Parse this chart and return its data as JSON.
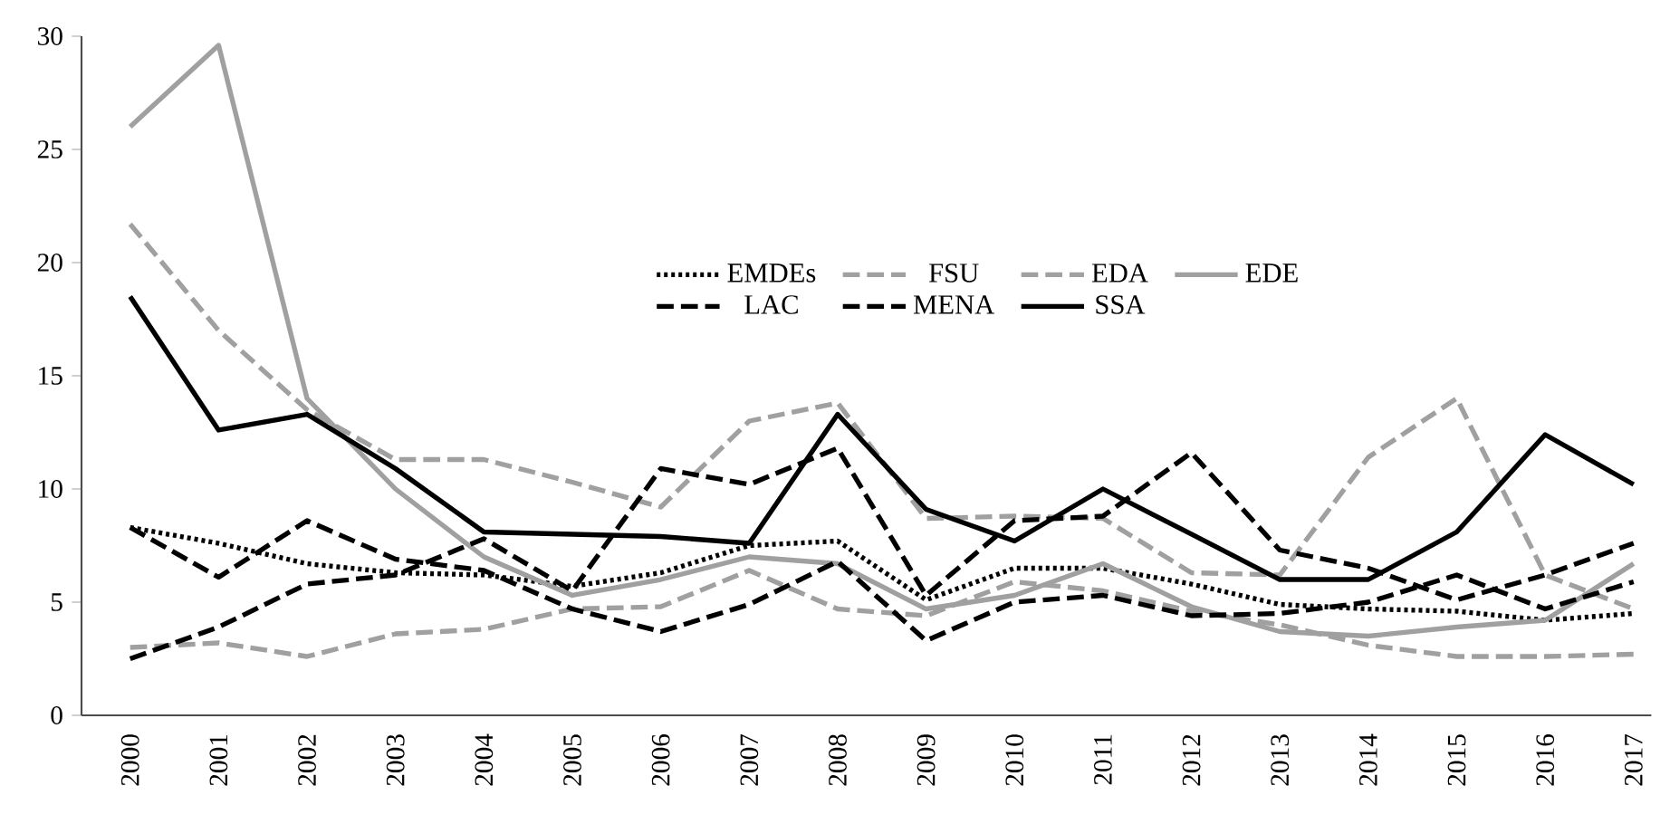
{
  "chart_data": {
    "type": "line",
    "categories": [
      "2000",
      "2001",
      "2002",
      "2003",
      "2004",
      "2005",
      "2006",
      "2007",
      "2008",
      "2009",
      "2010",
      "2011",
      "2012",
      "2013",
      "2014",
      "2015",
      "2016",
      "2017"
    ],
    "ylim": [
      0,
      30
    ],
    "yticks": [
      0,
      5,
      10,
      15,
      20,
      25,
      30
    ],
    "grid": false,
    "legend": "top right",
    "series": [
      {
        "name": "EMDEs",
        "color": "#000000",
        "line_style": "dotted",
        "values": [
          8.3,
          7.6,
          6.7,
          6.3,
          6.2,
          5.7,
          6.3,
          7.5,
          7.7,
          5.1,
          6.5,
          6.5,
          5.8,
          4.9,
          4.7,
          4.6,
          4.2,
          4.5
        ]
      },
      {
        "name": "FSU",
        "color": "#a0a0a0",
        "line_style": "dashed",
        "values": [
          21.7,
          17,
          13.5,
          11.3,
          11.3,
          10.3,
          9.2,
          13,
          13.8,
          8.7,
          8.8,
          8.7,
          6.3,
          6.2,
          11.4,
          14,
          6.2,
          4.7
        ]
      },
      {
        "name": "EDA",
        "color": "#a0a0a0",
        "line_style": "dashed",
        "values": [
          3,
          3.2,
          2.6,
          3.6,
          3.8,
          4.7,
          4.8,
          6.4,
          4.7,
          4.4,
          5.9,
          5.5,
          4.6,
          4,
          3.1,
          2.6,
          2.6,
          2.7
        ]
      },
      {
        "name": "EDE",
        "color": "#a0a0a0",
        "line_style": "solid",
        "values": [
          26,
          29.6,
          14,
          10,
          7,
          5.3,
          6,
          7,
          6.7,
          4.7,
          5.3,
          6.7,
          4.8,
          3.7,
          3.5,
          3.9,
          4.2,
          6.7
        ]
      },
      {
        "name": "LAC",
        "color": "#000000",
        "line_style": "dashed",
        "values": [
          8.3,
          6.1,
          8.6,
          6.9,
          6.4,
          4.7,
          3.7,
          4.9,
          6.8,
          3.3,
          5,
          5.3,
          4.4,
          4.5,
          5,
          6.2,
          4.7,
          5.9
        ]
      },
      {
        "name": "MENA",
        "color": "#000000",
        "line_style": "dashed",
        "values": [
          2.5,
          3.9,
          5.8,
          6.2,
          7.8,
          5.5,
          10.9,
          10.2,
          11.8,
          5.3,
          8.6,
          8.8,
          11.6,
          7.3,
          6.5,
          5.1,
          6.2,
          7.6
        ]
      },
      {
        "name": "SSA",
        "color": "#000000",
        "line_style": "solid",
        "values": [
          18.5,
          12.6,
          13.3,
          10.9,
          8.1,
          8,
          7.9,
          7.6,
          13.3,
          9.1,
          7.7,
          10,
          8,
          6,
          6,
          8.1,
          12.4,
          10.2
        ]
      }
    ]
  }
}
